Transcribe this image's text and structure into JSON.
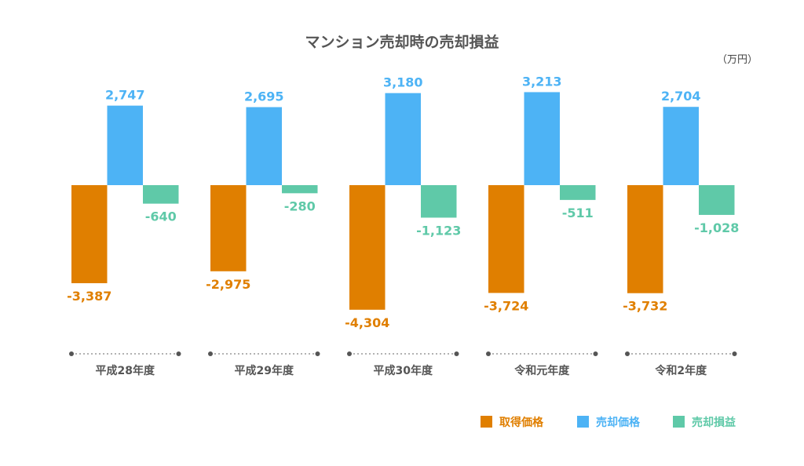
{
  "chart_data": {
    "type": "bar",
    "title": "マンション売却時の売却損益",
    "unit": "（万円）",
    "categories": [
      "平成28年度",
      "平成29年度",
      "平成30年度",
      "令和元年度",
      "令和2年度"
    ],
    "series": [
      {
        "name": "取得価格",
        "color": "#E07F00",
        "values": [
          -3387,
          -2975,
          -4304,
          -3724,
          -3732
        ],
        "labels": [
          "-3,387",
          "-2,975",
          "-4,304",
          "-3,724",
          "-3,732"
        ]
      },
      {
        "name": "売却価格",
        "color": "#4DB3F5",
        "values": [
          2747,
          2695,
          3180,
          3213,
          2704
        ],
        "labels": [
          "2,747",
          "2,695",
          "3,180",
          "3,213",
          "2,704"
        ]
      },
      {
        "name": "売却損益",
        "color": "#5FC9A8",
        "values": [
          -640,
          -280,
          -1123,
          -511,
          -1028
        ],
        "labels": [
          "-640",
          "-280",
          "-1,123",
          "-511",
          "-1,028"
        ]
      }
    ],
    "ylim": [
      -4500,
      3500
    ],
    "grid": false,
    "legend": "bottom-right"
  }
}
